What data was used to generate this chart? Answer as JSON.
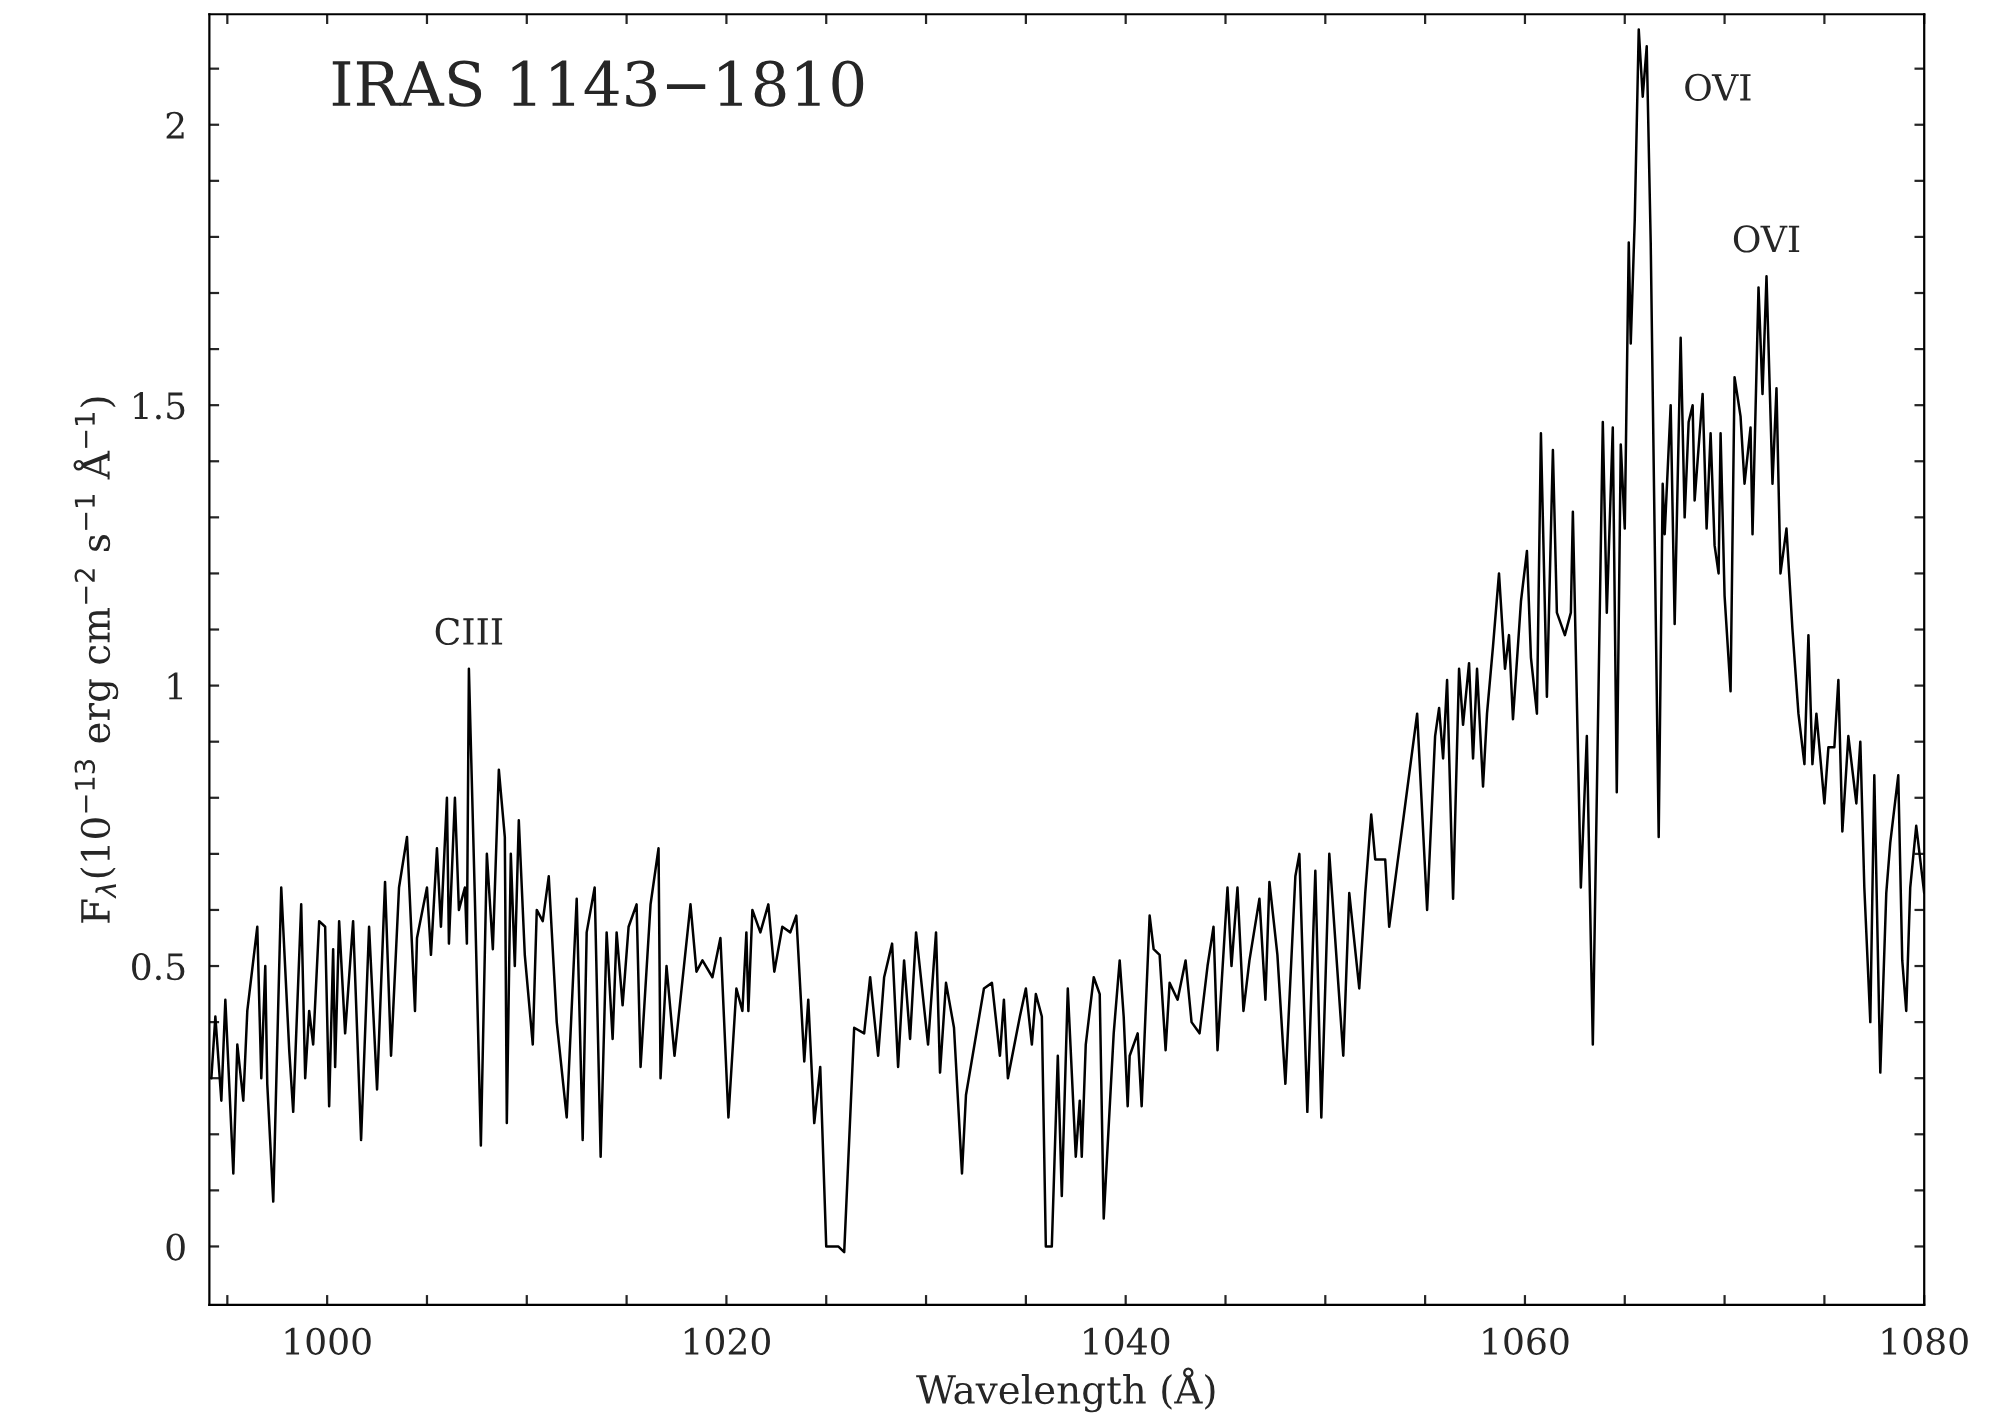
{
  "chart_data": {
    "type": "line",
    "title": "IRAS 1143−1810",
    "xlabel": "Wavelength (Å)",
    "ylabel": "F$_{λ}$(10$^{−13}$ erg cm$^{−2}$ s$^{−1}$ Å$^{−1}$)",
    "series": [
      {
        "color": "#000000",
        "x": [
          994.2,
          994.4,
          994.7,
          994.9,
          995.3,
          995.5,
          995.8,
          996.0,
          996.5,
          996.7,
          996.9,
          997.0,
          997.3,
          997.7,
          998.1,
          998.3,
          998.7,
          998.9,
          999.1,
          999.3,
          999.6,
          999.9,
          1000.1,
          1000.3,
          1000.4,
          1000.6,
          1000.9,
          1001.3,
          1001.7,
          1002.1,
          1002.5,
          1002.9,
          1003.2,
          1003.6,
          1004.0,
          1004.4,
          1004.5,
          1005.0,
          1005.2,
          1005.5,
          1005.7,
          1006.0,
          1006.1,
          1006.4,
          1006.6,
          1006.9,
          1007.0,
          1007.1,
          1007.4,
          1007.7,
          1008.0,
          1008.3,
          1008.6,
          1008.9,
          1009.0,
          1009.2,
          1009.4,
          1009.6,
          1009.9,
          1010.3,
          1010.5,
          1010.8,
          1011.1,
          1011.5,
          1012.0,
          1012.5,
          1012.8,
          1013.0,
          1013.4,
          1013.7,
          1014.0,
          1014.3,
          1014.5,
          1014.8,
          1015.1,
          1015.5,
          1015.7,
          1016.2,
          1016.6,
          1016.7,
          1017.0,
          1017.4,
          1018.2,
          1018.5,
          1018.8,
          1019.3,
          1019.7,
          1020.1,
          1020.5,
          1020.8,
          1021.0,
          1021.1,
          1021.3,
          1021.7,
          1022.1,
          1022.4,
          1022.8,
          1023.2,
          1023.5,
          1023.9,
          1024.1,
          1024.4,
          1024.7,
          1025.0,
          1025.6,
          1025.9,
          1026.4,
          1026.9,
          1027.2,
          1027.6,
          1027.9,
          1028.3,
          1028.6,
          1028.9,
          1029.2,
          1029.5,
          1030.1,
          1030.5,
          1030.7,
          1031.0,
          1031.4,
          1031.8,
          1032.0,
          1032.9,
          1033.3,
          1033.7,
          1033.9,
          1034.1,
          1034.7,
          1035.0,
          1035.3,
          1035.5,
          1035.8,
          1036.0,
          1036.3,
          1036.6,
          1036.8,
          1037.1,
          1037.5,
          1037.7,
          1037.8,
          1038.0,
          1038.4,
          1038.7,
          1038.9,
          1039.4,
          1039.7,
          1039.9,
          1040.1,
          1040.2,
          1040.6,
          1040.8,
          1041.2,
          1041.4,
          1041.7,
          1042.0,
          1042.2,
          1042.6,
          1043.0,
          1043.3,
          1043.7,
          1044.1,
          1044.4,
          1044.6,
          1045.1,
          1045.3,
          1045.6,
          1045.9,
          1046.2,
          1046.7,
          1047.0,
          1047.2,
          1047.6,
          1048.0,
          1048.5,
          1048.7,
          1049.1,
          1049.5,
          1049.8,
          1050.2,
          1050.9,
          1051.2,
          1051.7,
          1052.0,
          1052.3,
          1052.5,
          1053.0,
          1053.2,
          1053.6,
          1053.9,
          1054.6,
          1055.1,
          1055.5,
          1055.7,
          1055.9,
          1056.1,
          1056.4,
          1056.7,
          1056.9,
          1057.2,
          1057.4,
          1057.6,
          1057.9,
          1058.1,
          1058.4,
          1058.7,
          1059.0,
          1059.2,
          1059.4,
          1059.8,
          1060.1,
          1060.3,
          1060.6,
          1060.8,
          1061.1,
          1061.4,
          1061.6,
          1062.0,
          1062.3,
          1062.4,
          1062.8,
          1063.1,
          1063.4,
          1063.9,
          1064.1,
          1064.4,
          1064.6,
          1064.8,
          1065.0,
          1065.2,
          1065.3,
          1065.5,
          1065.7,
          1065.9,
          1066.1,
          1066.3,
          1066.7,
          1066.9,
          1067.0,
          1067.3,
          1067.5,
          1067.8,
          1068.0,
          1068.2,
          1068.4,
          1068.5,
          1068.9,
          1069.1,
          1069.3,
          1069.5,
          1069.7,
          1069.8,
          1070.0,
          1070.3,
          1070.5,
          1070.8,
          1071.0,
          1071.3,
          1071.4,
          1071.7,
          1071.9,
          1072.1,
          1072.4,
          1072.6,
          1072.8,
          1073.1,
          1073.3,
          1073.4,
          1073.7,
          1074.0,
          1074.2,
          1074.4,
          1074.6,
          1075.0,
          1075.2,
          1075.5,
          1075.7,
          1075.9,
          1076.2,
          1076.6,
          1076.8,
          1077.0,
          1077.3,
          1077.5,
          1077.8,
          1078.1,
          1078.3,
          1078.7,
          1078.9,
          1079.1,
          1079.3,
          1079.6,
          1080.0
        ],
        "values": [
          0.3,
          0.41,
          0.26,
          0.44,
          0.13,
          0.36,
          0.26,
          0.42,
          0.57,
          0.3,
          0.5,
          0.29,
          0.08,
          0.64,
          0.35,
          0.24,
          0.61,
          0.3,
          0.42,
          0.36,
          0.58,
          0.57,
          0.25,
          0.53,
          0.32,
          0.58,
          0.38,
          0.58,
          0.19,
          0.57,
          0.28,
          0.65,
          0.34,
          0.64,
          0.73,
          0.42,
          0.55,
          0.64,
          0.52,
          0.71,
          0.57,
          0.8,
          0.54,
          0.8,
          0.6,
          0.64,
          0.54,
          1.03,
          0.62,
          0.18,
          0.7,
          0.53,
          0.85,
          0.73,
          0.22,
          0.7,
          0.5,
          0.76,
          0.52,
          0.36,
          0.6,
          0.58,
          0.66,
          0.4,
          0.23,
          0.62,
          0.19,
          0.56,
          0.64,
          0.16,
          0.56,
          0.37,
          0.56,
          0.43,
          0.57,
          0.61,
          0.32,
          0.61,
          0.71,
          0.3,
          0.5,
          0.34,
          0.61,
          0.49,
          0.51,
          0.48,
          0.55,
          0.23,
          0.46,
          0.42,
          0.56,
          0.42,
          0.6,
          0.56,
          0.61,
          0.49,
          0.57,
          0.56,
          0.59,
          0.33,
          0.44,
          0.22,
          0.32,
          0.0,
          0.0,
          -0.01,
          0.39,
          0.38,
          0.48,
          0.34,
          0.48,
          0.54,
          0.32,
          0.51,
          0.37,
          0.56,
          0.36,
          0.56,
          0.31,
          0.47,
          0.39,
          0.13,
          0.27,
          0.46,
          0.47,
          0.34,
          0.44,
          0.3,
          0.41,
          0.46,
          0.36,
          0.45,
          0.41,
          0.0,
          0.0,
          0.34,
          0.09,
          0.46,
          0.16,
          0.26,
          0.16,
          0.36,
          0.48,
          0.45,
          0.05,
          0.38,
          0.51,
          0.41,
          0.25,
          0.34,
          0.38,
          0.25,
          0.59,
          0.53,
          0.52,
          0.35,
          0.47,
          0.44,
          0.51,
          0.4,
          0.38,
          0.5,
          0.57,
          0.35,
          0.64,
          0.5,
          0.64,
          0.42,
          0.51,
          0.62,
          0.44,
          0.65,
          0.52,
          0.29,
          0.66,
          0.7,
          0.24,
          0.67,
          0.23,
          0.7,
          0.34,
          0.63,
          0.46,
          0.63,
          0.77,
          0.69,
          0.69,
          0.57,
          0.68,
          0.76,
          0.95,
          0.6,
          0.91,
          0.96,
          0.87,
          1.01,
          0.62,
          1.03,
          0.93,
          1.04,
          0.87,
          1.03,
          0.82,
          0.95,
          1.07,
          1.2,
          1.03,
          1.09,
          0.94,
          1.15,
          1.24,
          1.05,
          0.95,
          1.45,
          0.98,
          1.42,
          1.13,
          1.09,
          1.13,
          1.31,
          0.64,
          0.91,
          0.36,
          1.47,
          1.13,
          1.46,
          0.81,
          1.43,
          1.28,
          1.79,
          1.61,
          1.83,
          2.17,
          2.05,
          2.14,
          1.79,
          0.73,
          1.36,
          1.27,
          1.5,
          1.11,
          1.62,
          1.3,
          1.47,
          1.5,
          1.33,
          1.52,
          1.28,
          1.45,
          1.25,
          1.2,
          1.45,
          1.16,
          0.99,
          1.55,
          1.48,
          1.36,
          1.46,
          1.27,
          1.71,
          1.52,
          1.73,
          1.36,
          1.53,
          1.2,
          1.28,
          1.16,
          1.1,
          0.95,
          0.86,
          1.09,
          0.86,
          0.95,
          0.79,
          0.89,
          0.89,
          1.01,
          0.74,
          0.91,
          0.79,
          0.9,
          0.64,
          0.4,
          0.84,
          0.31,
          0.63,
          0.72,
          0.84,
          0.51,
          0.42,
          0.64,
          0.75,
          0.63
        ]
      }
    ],
    "annotations": [
      {
        "text": "CIII",
        "x": 1007.1,
        "y": 1.03
      },
      {
        "text": "OVI",
        "x": 1065.7,
        "y": 2.17
      },
      {
        "text": "OVI",
        "x": 1072.1,
        "y": 1.73
      }
    ],
    "xlim": [
      994.1,
      1080
    ],
    "ylim": [
      -0.104,
      2.197
    ],
    "xticks": [
      {
        "value": 995,
        "label": null
      },
      1000,
      {
        "value": 1005,
        "label": null
      },
      {
        "value": 1010,
        "label": null
      },
      {
        "value": 1015,
        "label": null
      },
      1020,
      {
        "value": 1025,
        "label": null
      },
      {
        "value": 1030,
        "label": null
      },
      {
        "value": 1035,
        "label": null
      },
      1040,
      {
        "value": 1045,
        "label": null
      },
      {
        "value": 1050,
        "label": null
      },
      {
        "value": 1055,
        "label": null
      },
      1060,
      {
        "value": 1065,
        "label": null
      },
      {
        "value": 1070,
        "label": null
      },
      {
        "value": 1075,
        "label": null
      },
      1080
    ],
    "yticks": [
      0,
      {
        "value": 0.1,
        "label": null
      },
      {
        "value": 0.2,
        "label": null
      },
      {
        "value": 0.3,
        "label": null
      },
      {
        "value": 0.4,
        "label": null
      },
      0.5,
      {
        "value": 0.6,
        "label": null
      },
      {
        "value": 0.7,
        "label": null
      },
      {
        "value": 0.8,
        "label": null
      },
      {
        "value": 0.9,
        "label": null
      },
      1,
      {
        "value": 1.1,
        "label": null
      },
      {
        "value": 1.2,
        "label": null
      },
      {
        "value": 1.3,
        "label": null
      },
      {
        "value": 1.4,
        "label": null
      },
      1.5,
      {
        "value": 1.6,
        "label": null
      },
      {
        "value": 1.7,
        "label": null
      },
      {
        "value": 1.8,
        "label": null
      },
      {
        "value": 1.9,
        "label": null
      },
      2,
      {
        "value": 2.1,
        "label": null
      }
    ],
    "grid": false,
    "legend": false
  }
}
